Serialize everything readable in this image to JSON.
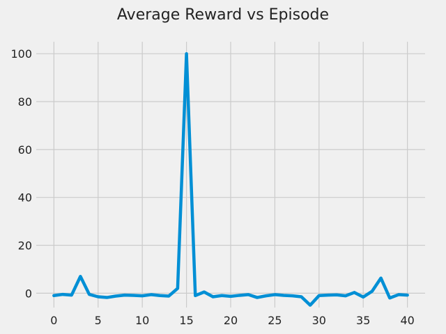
{
  "chart_data": {
    "type": "line",
    "title": "Average Reward vs Episode",
    "xlabel": "",
    "ylabel": "",
    "xlim": [
      -2,
      42
    ],
    "ylim": [
      -6,
      105
    ],
    "xticks": [
      0,
      5,
      10,
      15,
      20,
      25,
      30,
      35,
      40
    ],
    "yticks": [
      0,
      20,
      40,
      60,
      80,
      100
    ],
    "grid": true,
    "series": [
      {
        "color": "#008fd5",
        "x": [
          0,
          1,
          2,
          3,
          4,
          5,
          6,
          7,
          8,
          9,
          10,
          11,
          12,
          13,
          14,
          15,
          16,
          17,
          18,
          19,
          20,
          21,
          22,
          23,
          24,
          25,
          26,
          27,
          28,
          29,
          30,
          31,
          32,
          33,
          34,
          35,
          36,
          37,
          38,
          39,
          40
        ],
        "y": [
          -1,
          -0.5,
          -0.8,
          7,
          -0.5,
          -1.5,
          -1.8,
          -1.2,
          -0.8,
          -0.9,
          -1.1,
          -0.6,
          -1,
          -1.2,
          2,
          100,
          -1,
          0.5,
          -1.5,
          -1,
          -1.3,
          -0.9,
          -0.6,
          -1.8,
          -1.1,
          -0.6,
          -0.9,
          -1.1,
          -1.5,
          -5,
          -1,
          -0.8,
          -0.7,
          -1.1,
          0.3,
          -1.6,
          0.8,
          6.3,
          -2,
          -0.6,
          -0.8
        ]
      }
    ]
  }
}
